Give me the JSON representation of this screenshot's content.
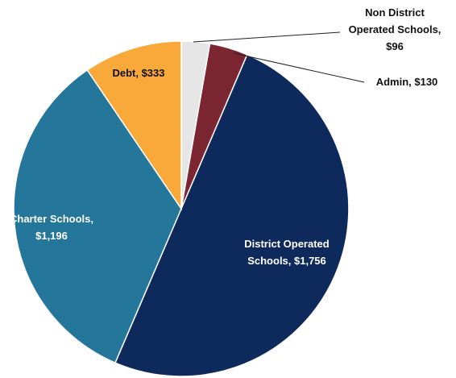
{
  "chart_data": {
    "type": "pie",
    "title": "",
    "series": [
      {
        "values": [
          96,
          130,
          1756,
          1196,
          333
        ],
        "categories": [
          "Non District Operated Schools",
          "Admin",
          "District Operated Schools",
          "Charter Schools",
          "Debt"
        ]
      }
    ],
    "slices": [
      {
        "name": "Non District Operated Schools",
        "value": 96,
        "color": "#e6e6e6",
        "label_lines": [
          "Non District",
          "Operated Schools,",
          "$96"
        ],
        "label_color": "#111111"
      },
      {
        "name": "Admin",
        "value": 130,
        "color": "#7b2630",
        "label_lines": [
          "Admin, $130"
        ],
        "label_color": "#111111"
      },
      {
        "name": "District Operated Schools",
        "value": 1756,
        "color": "#0e2a5c",
        "label_lines": [
          "District Operated",
          "Schools, $1,756"
        ],
        "label_color": "#ffffff"
      },
      {
        "name": "Charter Schools",
        "value": 1196,
        "color": "#24769a",
        "label_lines": [
          "Charter Schools,",
          "$1,196"
        ],
        "label_color": "#ffffff"
      },
      {
        "name": "Debt",
        "value": 333,
        "color": "#f9a83a",
        "label_lines": [
          "Debt, $333"
        ],
        "label_color": "#111111"
      }
    ],
    "legend": "none",
    "start": "top, clockwise"
  }
}
